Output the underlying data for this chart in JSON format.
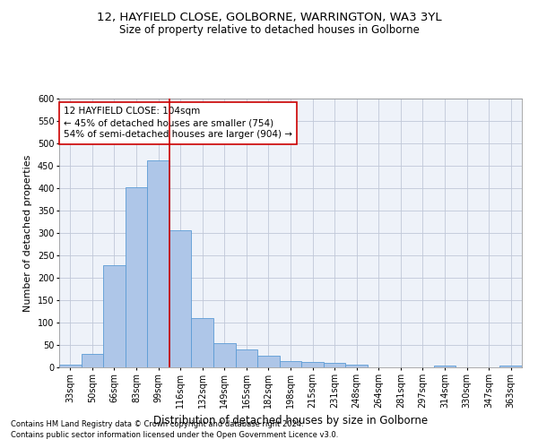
{
  "title1": "12, HAYFIELD CLOSE, GOLBORNE, WARRINGTON, WA3 3YL",
  "title2": "Size of property relative to detached houses in Golborne",
  "xlabel": "Distribution of detached houses by size in Golborne",
  "ylabel": "Number of detached properties",
  "categories": [
    "33sqm",
    "50sqm",
    "66sqm",
    "83sqm",
    "99sqm",
    "116sqm",
    "132sqm",
    "149sqm",
    "165sqm",
    "182sqm",
    "198sqm",
    "215sqm",
    "231sqm",
    "248sqm",
    "264sqm",
    "281sqm",
    "297sqm",
    "314sqm",
    "330sqm",
    "347sqm",
    "363sqm"
  ],
  "values": [
    7,
    30,
    228,
    402,
    463,
    307,
    110,
    54,
    40,
    27,
    15,
    12,
    10,
    7,
    0,
    0,
    0,
    5,
    0,
    0,
    5
  ],
  "bar_color": "#aec6e8",
  "bar_edgecolor": "#5b9bd5",
  "vline_color": "#cc0000",
  "annotation_text": "12 HAYFIELD CLOSE: 104sqm\n← 45% of detached houses are smaller (754)\n54% of semi-detached houses are larger (904) →",
  "annotation_box_color": "#ffffff",
  "annotation_box_edgecolor": "#cc0000",
  "ylim": [
    0,
    600
  ],
  "yticks": [
    0,
    50,
    100,
    150,
    200,
    250,
    300,
    350,
    400,
    450,
    500,
    550,
    600
  ],
  "footnote1": "Contains HM Land Registry data © Crown copyright and database right 2024.",
  "footnote2": "Contains public sector information licensed under the Open Government Licence v3.0.",
  "background_color": "#eef2f9",
  "title1_fontsize": 9.5,
  "title2_fontsize": 8.5,
  "xlabel_fontsize": 8.5,
  "ylabel_fontsize": 8,
  "tick_fontsize": 7,
  "annotation_fontsize": 7.5,
  "footnote_fontsize": 6
}
